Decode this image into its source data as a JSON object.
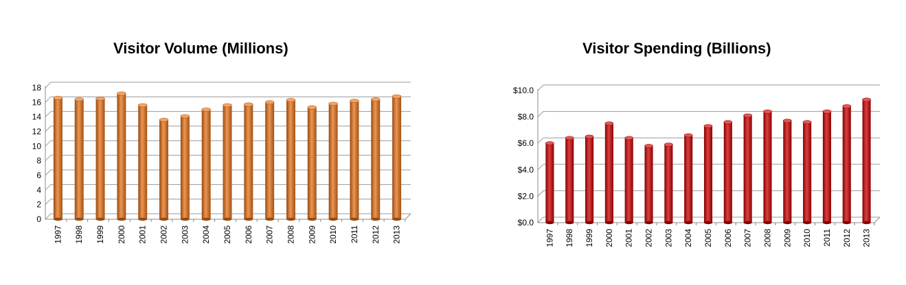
{
  "chart_data": [
    {
      "type": "bar",
      "title": "Visitor Volume (Millions)",
      "categories": [
        "1997",
        "1998",
        "1999",
        "2000",
        "2001",
        "2002",
        "2003",
        "2004",
        "2005",
        "2006",
        "2007",
        "2008",
        "2009",
        "2010",
        "2011",
        "2012",
        "2013"
      ],
      "values": [
        16.6,
        16.4,
        16.5,
        17.2,
        15.6,
        13.6,
        14.1,
        15.0,
        15.6,
        15.7,
        16.0,
        16.3,
        15.3,
        15.8,
        16.2,
        16.4,
        16.8
      ],
      "ylim": [
        0,
        18
      ],
      "yticks": [
        "0",
        "2",
        "4",
        "6",
        "8",
        "10",
        "12",
        "14",
        "16",
        "18"
      ],
      "bar_color": "#e8731a",
      "grid": true
    },
    {
      "type": "bar",
      "title": "Visitor Spending (Billions)",
      "categories": [
        "1997",
        "1998",
        "1999",
        "2000",
        "2001",
        "2002",
        "2003",
        "2004",
        "2005",
        "2006",
        "2007",
        "2008",
        "2009",
        "2010",
        "2011",
        "2012",
        "2013"
      ],
      "values": [
        6.0,
        6.4,
        6.5,
        7.5,
        6.4,
        5.8,
        5.9,
        6.6,
        7.3,
        7.6,
        8.1,
        8.4,
        7.7,
        7.6,
        8.4,
        8.8,
        9.3
      ],
      "ylim": [
        0,
        10
      ],
      "yticks": [
        "$0.0",
        "$2.0",
        "$4.0",
        "$6.0",
        "$8.0",
        "$10.0"
      ],
      "bar_color": "#cc0000",
      "grid": true
    }
  ]
}
